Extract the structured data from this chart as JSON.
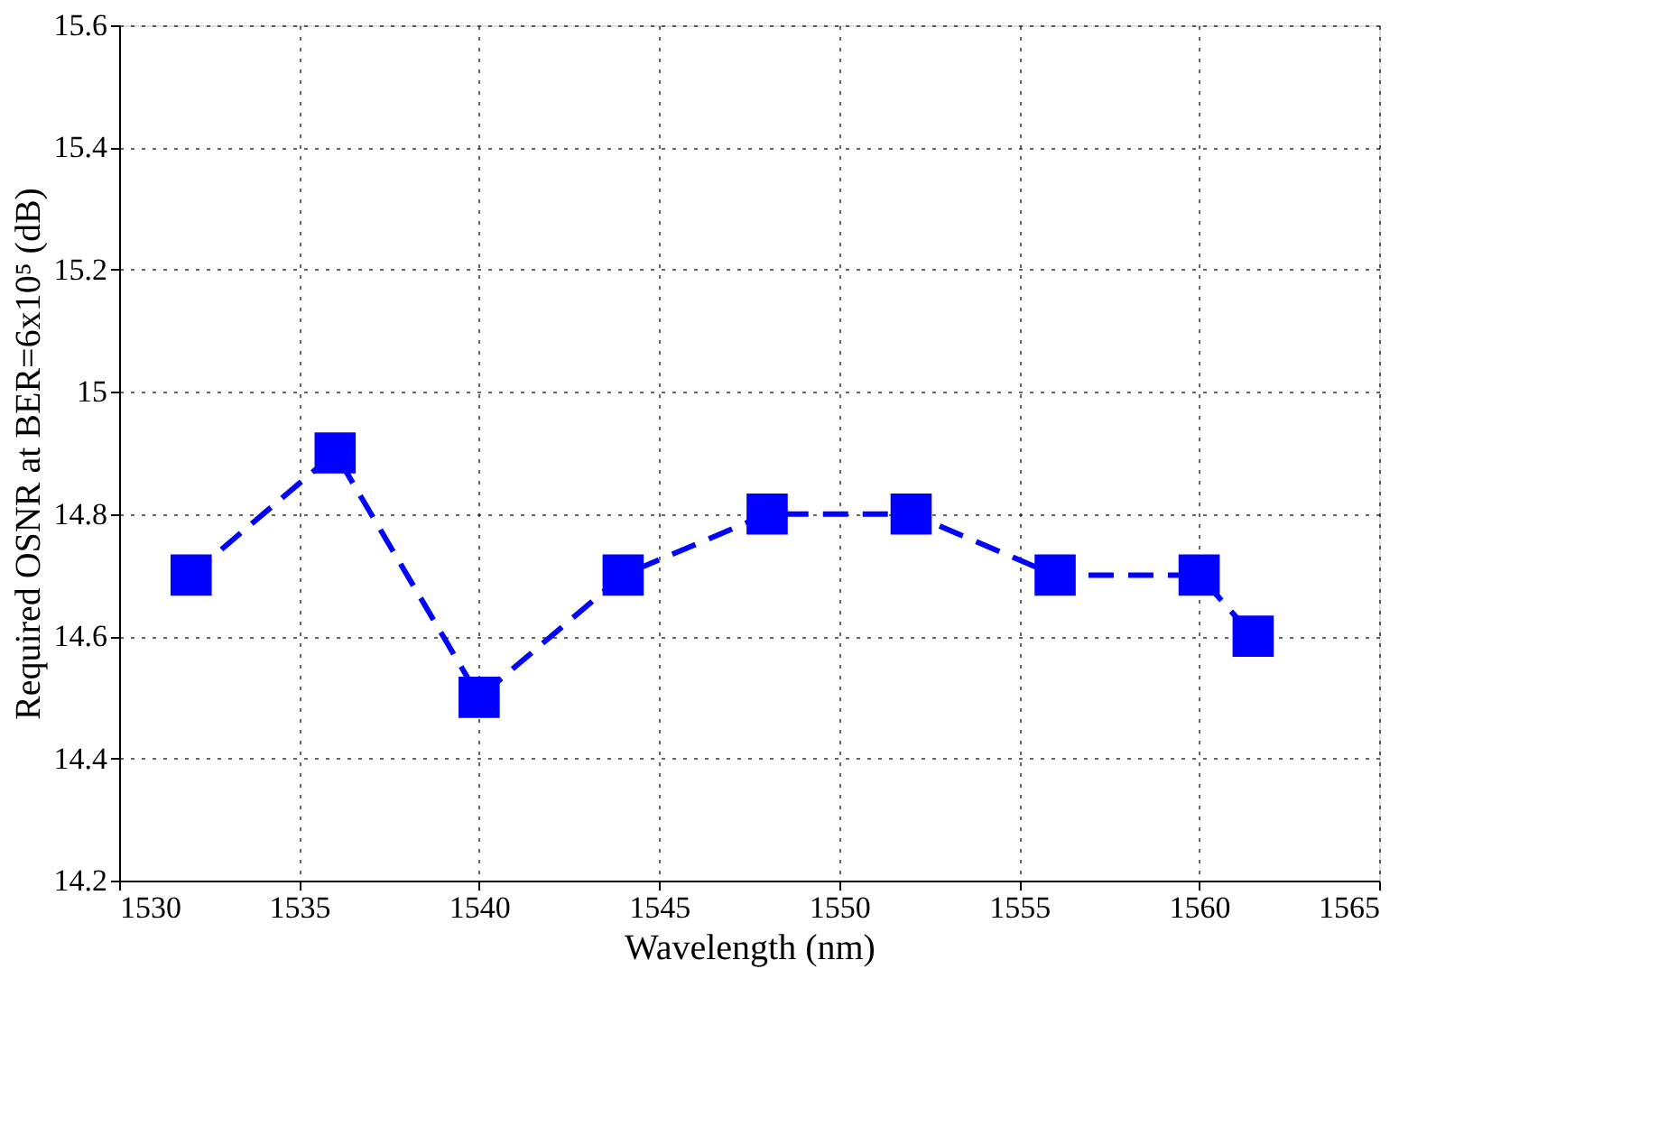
{
  "chart_data": {
    "type": "line",
    "xlabel": "Wavelength (nm)",
    "ylabel": "Required OSNR at BER=6x10⁵ (dB)",
    "x": [
      1532,
      1536,
      1540,
      1544,
      1548,
      1552,
      1556,
      1560,
      1561.5
    ],
    "series": [
      {
        "color": "#0000ff",
        "values": [
          14.7,
          14.9,
          14.5,
          14.7,
          14.8,
          14.8,
          14.7,
          14.7,
          14.6
        ]
      }
    ],
    "xlim": [
      1530,
      1565
    ],
    "xticks": [
      1530,
      1535,
      1540,
      1545,
      1550,
      1555,
      1560,
      1565
    ],
    "ylim": [
      14.2,
      15.6
    ],
    "yticks": [
      14.2,
      14.4,
      14.6,
      14.8,
      15,
      15.2,
      15.4,
      15.6
    ],
    "grid": true,
    "marker": "square",
    "line_style": "dashed"
  }
}
